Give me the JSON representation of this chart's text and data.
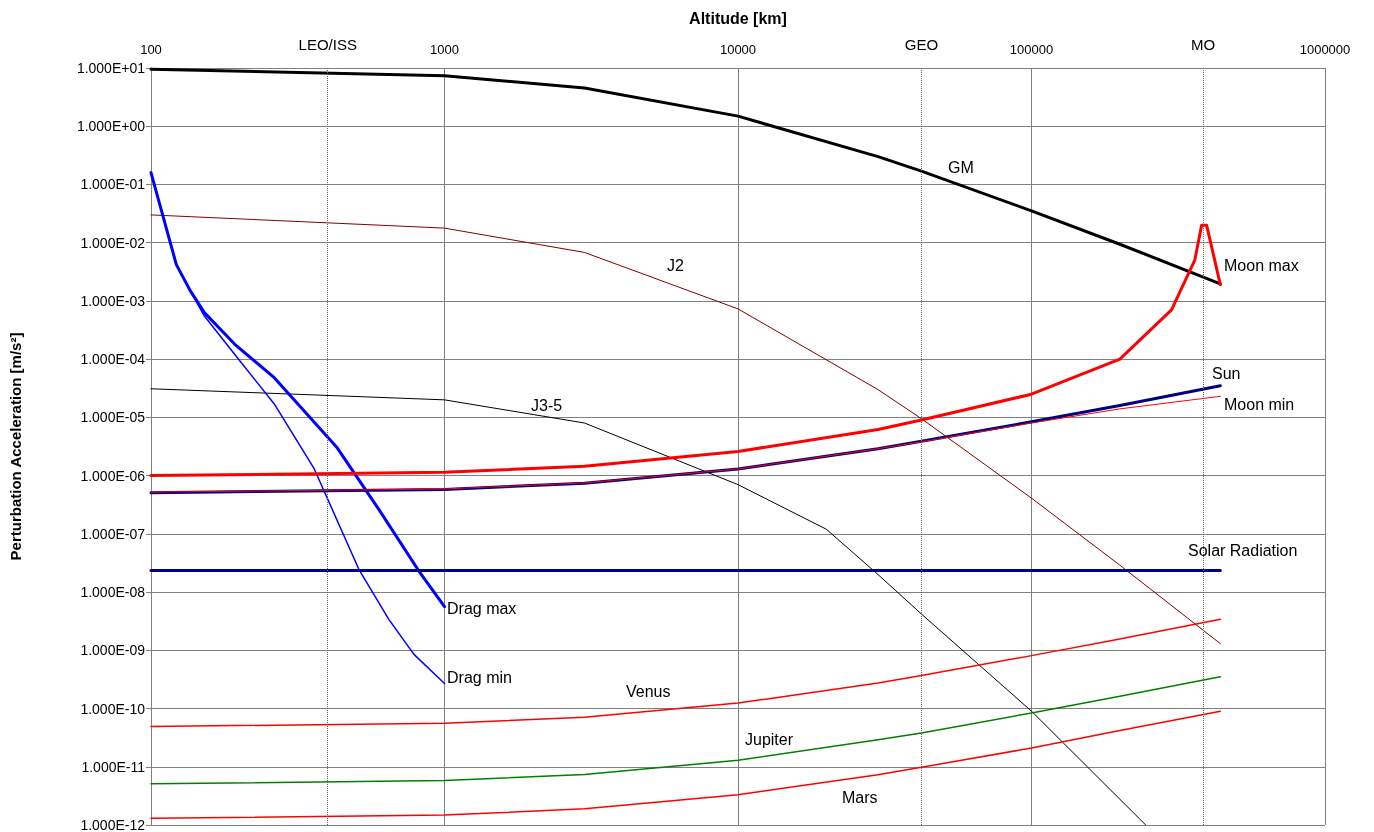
{
  "chart_data": {
    "type": "line",
    "xlabel": "Altitude [km]",
    "ylabel": "Perturbation Acceleration [m/s²]",
    "log": "xy",
    "grid": true,
    "legend": false,
    "marker": "none",
    "line_style": "solid",
    "xlim": [
      100,
      1000000
    ],
    "xticks": [
      100,
      1000,
      10000,
      100000,
      1000000
    ],
    "ylim": [
      1e-12,
      10
    ],
    "yticks": [
      {
        "value": 10,
        "label": "1.000E+01"
      },
      {
        "value": 1,
        "label": "1.000E+00"
      },
      {
        "value": 0.1,
        "label": "1.000E-01"
      },
      {
        "value": 0.01,
        "label": "1.000E-02"
      },
      {
        "value": 0.001,
        "label": "1.000E-03"
      },
      {
        "value": 0.0001,
        "label": "1.000E-04"
      },
      {
        "value": 1e-05,
        "label": "1.000E-05"
      },
      {
        "value": 1e-06,
        "label": "1.000E-06"
      },
      {
        "value": 1e-07,
        "label": "1.000E-07"
      },
      {
        "value": 1e-08,
        "label": "1.000E-08"
      },
      {
        "value": 1e-09,
        "label": "1.000E-09"
      },
      {
        "value": 1e-10,
        "label": "1.000E-10"
      },
      {
        "value": 1e-11,
        "label": "1.000E-11"
      },
      {
        "value": 1e-12,
        "label": "1.000E-12"
      }
    ],
    "ref_lines": [
      {
        "axis": "x",
        "value": 400,
        "label": "LEO/ISS",
        "color": "#606060",
        "line_style": "dotted"
      },
      {
        "axis": "x",
        "value": 42164,
        "label": "GEO",
        "color": "#606060",
        "line_style": "dotted"
      },
      {
        "axis": "x",
        "value": 384400,
        "label": "MO",
        "color": "#606060",
        "line_style": "dotted"
      }
    ],
    "series": [
      {
        "name": "GM",
        "color": "#000000",
        "x": [
          100,
          1000,
          3000,
          10000,
          30000,
          42164,
          100000,
          200000,
          440000
        ],
        "values": [
          9.52,
          7.34,
          4.54,
          1.49,
          0.301,
          0.169,
          0.0352,
          0.0094,
          0.00197
        ]
      },
      {
        "name": "J2",
        "color": "#800000",
        "x": [
          100,
          1000,
          3000,
          10000,
          30000,
          42164,
          100000,
          200000,
          440000
        ],
        "values": [
          0.03,
          0.0178,
          0.0068,
          0.00073,
          3e-05,
          9.5e-06,
          4.1e-07,
          2.9e-08,
          1.3e-09
        ]
      },
      {
        "name": "J3-5",
        "color": "#000000",
        "x": [
          100,
          1000,
          3000,
          10000,
          20000,
          30000,
          42164,
          100000,
          245000
        ],
        "values": [
          3.1e-05,
          2e-05,
          8e-06,
          7e-07,
          1.2e-07,
          2e-08,
          4.2e-09,
          9e-11,
          1e-12
        ]
      },
      {
        "name": "Drag max",
        "color": "#0000ff",
        "x": [
          100,
          122,
          136,
          152,
          193,
          263,
          431,
          598,
          818,
          1000
        ],
        "values": [
          0.16,
          0.0042,
          0.0015,
          0.00063,
          0.00018,
          4.8e-05,
          3e-06,
          2.6e-07,
          2.3e-08,
          5.6e-09
        ]
      },
      {
        "name": "Drag min",
        "color": "#0000ff",
        "x": [
          100,
          122,
          136,
          152,
          193,
          263,
          360,
          512,
          646,
          787,
          1000
        ],
        "values": [
          0.16,
          0.0042,
          0.0015,
          0.00055,
          0.00012,
          1.7e-05,
          1.3e-06,
          2.4e-08,
          3.4e-09,
          8.5e-10,
          2.7e-10
        ]
      },
      {
        "name": "Moon max",
        "color": "#ff0000",
        "x": [
          100,
          1000,
          3000,
          10000,
          30000,
          42164,
          100000,
          200000,
          300000,
          360000,
          380000,
          395000,
          440000
        ],
        "values": [
          1e-06,
          1.14e-06,
          1.45e-06,
          2.6e-06,
          6.2e-06,
          9e-06,
          2.5e-05,
          0.0001,
          0.0007,
          0.005,
          0.02,
          0.02,
          0.0019
        ]
      },
      {
        "name": "Sun",
        "color": "#000080",
        "x": [
          100,
          1000,
          3000,
          10000,
          30000,
          42164,
          100000,
          200000,
          440000
        ],
        "values": [
          5.1e-07,
          5.8e-07,
          7.4e-07,
          1.3e-06,
          2.9e-06,
          3.9e-06,
          8.4e-06,
          1.6e-05,
          3.5e-05
        ]
      },
      {
        "name": "Moon min",
        "color": "#ff0000",
        "x": [
          100,
          1000,
          3000,
          10000,
          30000,
          42164,
          100000,
          200000,
          440000
        ],
        "values": [
          5.2e-07,
          5.9e-07,
          7.5e-07,
          1.3e-06,
          2.9e-06,
          3.8e-06,
          8e-06,
          1.4e-05,
          2.3e-05
        ]
      },
      {
        "name": "Solar Radiation",
        "color": "#000080",
        "x": [
          100,
          440000
        ],
        "values": [
          2.35e-08,
          2.35e-08
        ]
      },
      {
        "name": "Venus",
        "color": "#ff0000",
        "x": [
          100,
          1000,
          3000,
          10000,
          30000,
          42164,
          100000,
          200000,
          440000
        ],
        "values": [
          4.9e-11,
          5.6e-11,
          7.1e-11,
          1.24e-10,
          2.75e-10,
          3.7e-10,
          8.1e-10,
          1.56e-09,
          3.4e-09
        ]
      },
      {
        "name": "Jupiter",
        "color": "#008000",
        "x": [
          100,
          1000,
          3000,
          10000,
          30000,
          42164,
          100000,
          200000,
          440000
        ],
        "values": [
          5.1e-12,
          5.8e-12,
          7.4e-12,
          1.29e-11,
          2.9e-11,
          3.8e-11,
          8.4e-11,
          1.63e-10,
          3.5e-10
        ]
      },
      {
        "name": "Mars",
        "color": "#ff0000",
        "x": [
          100,
          1000,
          3000,
          10000,
          30000,
          42164,
          100000,
          200000,
          440000
        ],
        "values": [
          1.3e-12,
          1.48e-12,
          1.9e-12,
          3.3e-12,
          7.3e-12,
          9.8e-12,
          2.1e-11,
          4.2e-11,
          9e-11
        ]
      }
    ]
  }
}
